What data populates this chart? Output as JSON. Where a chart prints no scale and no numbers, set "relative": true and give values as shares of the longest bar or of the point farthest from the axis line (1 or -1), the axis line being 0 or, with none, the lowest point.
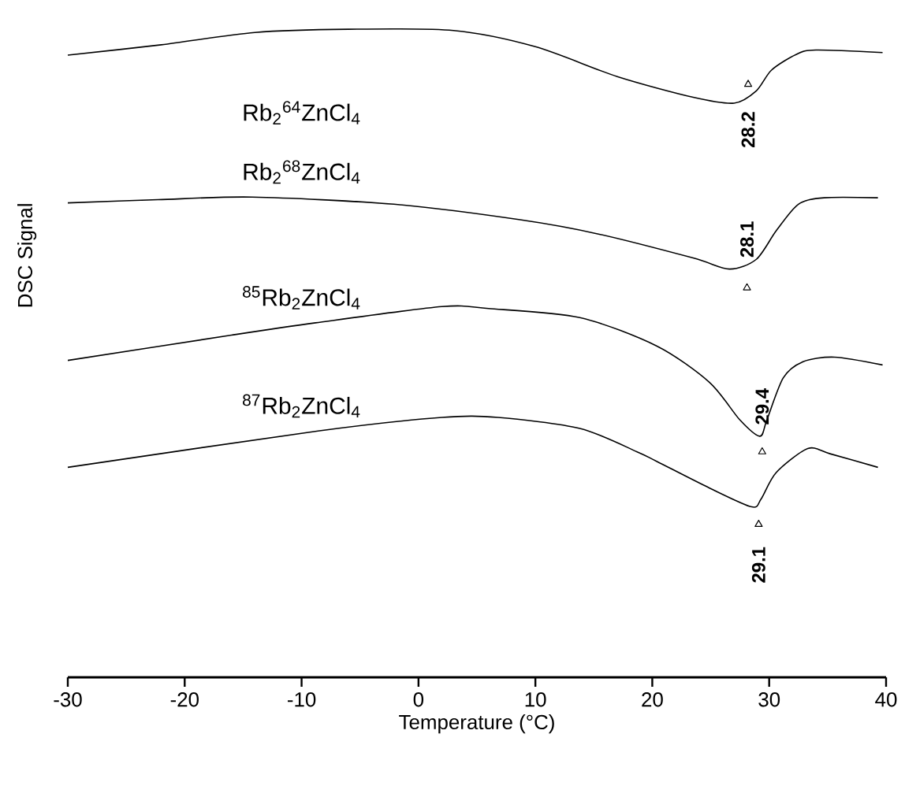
{
  "chart_data": {
    "type": "line",
    "relative": true,
    "xlabel": "Temperature  (°C)",
    "ylabel": "DSC Signal",
    "xlim": [
      -30,
      40
    ],
    "xticks": [
      -30,
      -20,
      -10,
      0,
      10,
      20,
      30,
      40
    ],
    "series": [
      {
        "name": "Rb$_{2}$$^{64}$ZnCl$_{4}$",
        "color": "#000000",
        "x": [
          -30,
          -22,
          -14,
          -6,
          3,
          10,
          17,
          23.5,
          27,
          28.9,
          30.2,
          32.3,
          34,
          39.7
        ],
        "values": [
          0.96,
          0.976,
          0.995,
          1.0,
          0.998,
          0.973,
          0.927,
          0.895,
          0.886,
          0.905,
          0.937,
          0.961,
          0.968,
          0.964
        ]
      },
      {
        "name": "Rb$_{2}$$^{68}$ZnCl$_{4}$",
        "color": "#000000",
        "x": [
          -30,
          -22.3,
          -14.2,
          -2.1,
          8.7,
          15.4,
          23.5,
          26.6,
          28.9,
          30.6,
          32.5,
          34.7,
          39.3
        ],
        "values": [
          0.732,
          0.737,
          0.741,
          0.73,
          0.706,
          0.684,
          0.647,
          0.63,
          0.645,
          0.689,
          0.73,
          0.74,
          0.74
        ]
      },
      {
        "name": "$^{85}$Rb$_{2}$ZnCl$_{4}$",
        "color": "#000000",
        "x": [
          -30,
          -16,
          -8.8,
          2,
          6,
          13.8,
          20.4,
          24.9,
          27.5,
          29.2,
          29.8,
          31.2,
          32.9,
          35.6,
          39.7
        ],
        "values": [
          0.489,
          0.528,
          0.547,
          0.572,
          0.569,
          0.555,
          0.511,
          0.455,
          0.397,
          0.372,
          0.397,
          0.462,
          0.487,
          0.494,
          0.482
        ]
      },
      {
        "name": "$^{87}$Rb$_{2}$ZnCl$_{4}$",
        "color": "#000000",
        "x": [
          -30,
          -8.6,
          2,
          6.8,
          13.8,
          18.7,
          20.4,
          24.9,
          28.5,
          29.3,
          30.6,
          33.3,
          35.2,
          39.3
        ],
        "values": [
          0.324,
          0.38,
          0.401,
          0.401,
          0.384,
          0.348,
          0.333,
          0.292,
          0.263,
          0.275,
          0.316,
          0.353,
          0.345,
          0.324
        ]
      },
      {
        "type": "scatter",
        "marker": "triangle",
        "color": "#000000",
        "x": [
          28.2,
          28.1,
          29.4,
          29.1
        ],
        "values": [
          0.915,
          0.601,
          0.348,
          0.236
        ]
      }
    ],
    "annotations": [
      {
        "text": "28.2",
        "x": 28.2,
        "y": 0.886
      },
      {
        "text": "28.1",
        "x": 28.1,
        "y": 0.63
      },
      {
        "text": "29.4",
        "x": 29.4,
        "y": 0.372
      },
      {
        "text": "29.1",
        "x": 29.1,
        "y": 0.263
      }
    ]
  }
}
